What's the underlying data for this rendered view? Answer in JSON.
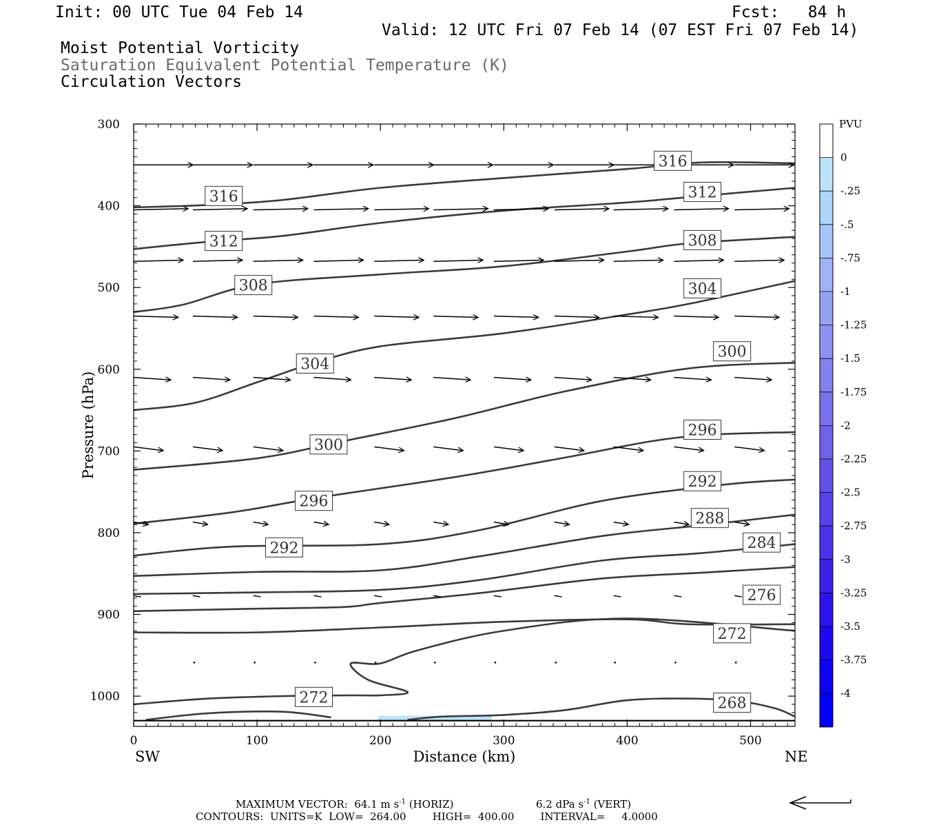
{
  "header": {
    "init": "Init: 00 UTC Tue 04 Feb 14",
    "fcst": "Fcst:   84 h",
    "valid": "Valid: 12 UTC Fri 07 Feb 14 (07 EST Fri 07 Feb 14)",
    "field1": "Moist Potential Vorticity",
    "field2": "Saturation Equivalent Potential Temperature (K)",
    "field3": "Circulation Vectors"
  },
  "footer": {
    "max_vector": "MAXIMUM VECTOR:  64.1 m s",
    "max_vector_horiz": " (HORIZ)",
    "max_vector_vert_val": "6.2 dPa s",
    "max_vector_vert": " (VERT)",
    "exponent": "-1",
    "contours": "CONTOURS:  UNITS=K  LOW=  264.00        HIGH=  400.00        INTERVAL=     4.0000"
  },
  "colorbar": {
    "title": "PVU",
    "labels": [
      "0",
      "-.25",
      "-.5",
      "-.75",
      "-1",
      "-1.25",
      "-1.5",
      "-1.75",
      "-2",
      "-2.25",
      "-2.5",
      "-2.75",
      "-3",
      "-3.25",
      "-3.5",
      "-3.75",
      "-4"
    ],
    "colors": [
      "#ffffff",
      "#bde3fa",
      "#aad6fa",
      "#a6c4f7",
      "#9eb2f4",
      "#95a2f2",
      "#8c92f0",
      "#8381ee",
      "#7a71ec",
      "#7061ea",
      "#6451e9",
      "#5841e8",
      "#4b31e8",
      "#3d21e9",
      "#2d13ec",
      "#1e08f0",
      "#0e02f4",
      "#0000f8"
    ]
  },
  "chart_data": {
    "type": "cross-section",
    "xlabel": "Distance (km)",
    "ylabel": "Pressure (hPa)",
    "x_range": [
      0,
      536
    ],
    "y_range": [
      300,
      1037
    ],
    "x_ticks": [
      0,
      100,
      200,
      300,
      400,
      500
    ],
    "y_ticks": [
      300,
      400,
      500,
      600,
      700,
      800,
      900,
      1000
    ],
    "x_left_label": "SW",
    "x_right_label": "NE",
    "grid": false,
    "surface_pressure": 1030,
    "contours": [
      {
        "level": 316,
        "points": [
          [
            0,
            402
          ],
          [
            60,
            399
          ],
          [
            120,
            393
          ],
          [
            200,
            378
          ],
          [
            300,
            366
          ],
          [
            400,
            355
          ],
          [
            460,
            347
          ],
          [
            536,
            348
          ]
        ]
      },
      {
        "level": 312,
        "points": [
          [
            0,
            453
          ],
          [
            60,
            444
          ],
          [
            120,
            437
          ],
          [
            200,
            421
          ],
          [
            300,
            406
          ],
          [
            400,
            396
          ],
          [
            460,
            388
          ],
          [
            536,
            378
          ]
        ]
      },
      {
        "level": 308,
        "points": [
          [
            0,
            530
          ],
          [
            40,
            521
          ],
          [
            100,
            496
          ],
          [
            200,
            484
          ],
          [
            300,
            474
          ],
          [
            400,
            456
          ],
          [
            450,
            446
          ],
          [
            536,
            438
          ]
        ]
      },
      {
        "level": 304,
        "points": [
          [
            0,
            650
          ],
          [
            50,
            641
          ],
          [
            100,
            616
          ],
          [
            145,
            593
          ],
          [
            200,
            572
          ],
          [
            300,
            556
          ],
          [
            400,
            533
          ],
          [
            450,
            520
          ],
          [
            536,
            492
          ]
        ]
      },
      {
        "level": 300,
        "points": [
          [
            0,
            723
          ],
          [
            100,
            709
          ],
          [
            170,
            688
          ],
          [
            260,
            660
          ],
          [
            350,
            627
          ],
          [
            450,
            599
          ],
          [
            536,
            592
          ]
        ]
      },
      {
        "level": 296,
        "points": [
          [
            0,
            789
          ],
          [
            80,
            775
          ],
          [
            150,
            757
          ],
          [
            260,
            732
          ],
          [
            350,
            708
          ],
          [
            420,
            688
          ],
          [
            470,
            680
          ],
          [
            536,
            677
          ]
        ]
      },
      {
        "level": 292,
        "points": [
          [
            0,
            828
          ],
          [
            80,
            817
          ],
          [
            200,
            814
          ],
          [
            280,
            797
          ],
          [
            380,
            761
          ],
          [
            480,
            741
          ],
          [
            536,
            735
          ]
        ]
      },
      {
        "level": 288,
        "points": [
          [
            0,
            853
          ],
          [
            100,
            848
          ],
          [
            200,
            846
          ],
          [
            280,
            829
          ],
          [
            380,
            804
          ],
          [
            460,
            791
          ],
          [
            536,
            778
          ]
        ]
      },
      {
        "level": 284,
        "points": [
          [
            0,
            875
          ],
          [
            100,
            873
          ],
          [
            200,
            870
          ],
          [
            280,
            858
          ],
          [
            380,
            834
          ],
          [
            460,
            825
          ],
          [
            536,
            814
          ]
        ]
      },
      {
        "level": 280,
        "points": [
          [
            0,
            896
          ],
          [
            100,
            893
          ],
          [
            170,
            891
          ],
          [
            200,
            886
          ],
          [
            280,
            874
          ],
          [
            380,
            856
          ],
          [
            460,
            849
          ],
          [
            536,
            842
          ]
        ]
      },
      {
        "level": 276,
        "points": [
          [
            0,
            922
          ],
          [
            100,
            922
          ],
          [
            200,
            916
          ],
          [
            300,
            909
          ],
          [
            400,
            906
          ],
          [
            450,
            912
          ],
          [
            536,
            912
          ]
        ]
      },
      {
        "level": 272,
        "points": [
          [
            0,
            1010
          ],
          [
            60,
            1003
          ],
          [
            120,
            1000
          ],
          [
            175,
            999
          ],
          [
            200,
            999
          ],
          [
            222,
            995
          ],
          [
            190,
            980
          ],
          [
            176,
            960
          ],
          [
            200,
            960
          ],
          [
            230,
            944
          ],
          [
            300,
            920
          ],
          [
            400,
            905
          ],
          [
            536,
            920
          ]
        ]
      },
      {
        "level": 268,
        "points": [
          [
            10,
            1029
          ],
          [
            60,
            1021
          ],
          [
            120,
            1019
          ],
          [
            160,
            1026
          ]
        ]
      },
      {
        "level": 268,
        "points": [
          [
            222,
            1029
          ],
          [
            250,
            1025
          ],
          [
            300,
            1023
          ],
          [
            350,
            1017
          ],
          [
            400,
            1005
          ],
          [
            450,
            1003
          ],
          [
            490,
            1006
          ],
          [
            520,
            1015
          ],
          [
            536,
            1025
          ]
        ]
      }
    ],
    "contour_labels": [
      {
        "text": "316",
        "x": 73,
        "y": 388
      },
      {
        "text": "312",
        "x": 73,
        "y": 443
      },
      {
        "text": "308",
        "x": 97,
        "y": 497
      },
      {
        "text": "304",
        "x": 147,
        "y": 593
      },
      {
        "text": "300",
        "x": 158,
        "y": 692
      },
      {
        "text": "296",
        "x": 146,
        "y": 761
      },
      {
        "text": "292",
        "x": 122,
        "y": 818
      },
      {
        "text": "316",
        "x": 437,
        "y": 345
      },
      {
        "text": "312",
        "x": 461,
        "y": 383
      },
      {
        "text": "308",
        "x": 461,
        "y": 442
      },
      {
        "text": "304",
        "x": 461,
        "y": 501
      },
      {
        "text": "300",
        "x": 485,
        "y": 578
      },
      {
        "text": "296",
        "x": 461,
        "y": 674
      },
      {
        "text": "292",
        "x": 461,
        "y": 737
      },
      {
        "text": "288",
        "x": 467,
        "y": 782
      },
      {
        "text": "284",
        "x": 509,
        "y": 812
      },
      {
        "text": "276",
        "x": 509,
        "y": 876
      },
      {
        "text": "272",
        "x": 485,
        "y": 923
      },
      {
        "text": "272",
        "x": 146,
        "y": 1001
      },
      {
        "text": "268",
        "x": 485,
        "y": 1008
      }
    ],
    "vector_rows": [
      {
        "p": 350,
        "x": [
          0,
          48,
          97,
          146,
          195,
          243,
          292,
          341,
          389,
          438,
          487
        ],
        "u": 48,
        "w": 0
      },
      {
        "p": 405,
        "x": [
          0,
          48,
          97,
          146,
          195,
          243,
          292,
          341,
          389,
          438,
          487
        ],
        "u": 44,
        "w": -2
      },
      {
        "p": 468,
        "x": [
          0,
          48,
          97,
          146,
          195,
          243,
          292,
          341,
          389,
          438,
          487
        ],
        "u": 40,
        "w": -2
      },
      {
        "p": 535,
        "x": [
          0,
          48,
          97,
          146,
          195,
          243,
          292,
          341,
          389,
          438,
          487
        ],
        "u": 36,
        "w": 2
      },
      {
        "p": 610,
        "x": [
          0,
          48,
          97,
          146,
          195,
          243,
          292,
          341,
          389,
          438,
          487
        ],
        "u": 30,
        "w": 4
      },
      {
        "p": 695,
        "x": [
          0,
          48,
          97,
          146,
          195,
          243,
          292,
          341,
          389,
          438,
          487
        ],
        "u": 24,
        "w": 6
      },
      {
        "p": 787,
        "x": [
          0,
          48,
          97,
          146,
          195,
          243,
          292,
          341,
          389,
          438,
          487
        ],
        "u": 12,
        "w": 4
      },
      {
        "p": 877,
        "x": [
          0,
          48,
          97,
          146,
          195,
          243,
          292,
          341,
          389,
          438,
          487
        ],
        "u": 6,
        "w": 2
      },
      {
        "p": 958,
        "x": [
          48,
          97,
          146,
          195,
          243,
          292,
          341,
          389,
          438,
          487
        ],
        "u": 1,
        "w": 1
      }
    ],
    "pv_shading": {
      "level": "-.25",
      "x_range": [
        198,
        290
      ],
      "p_range": [
        1024,
        1030
      ]
    }
  }
}
